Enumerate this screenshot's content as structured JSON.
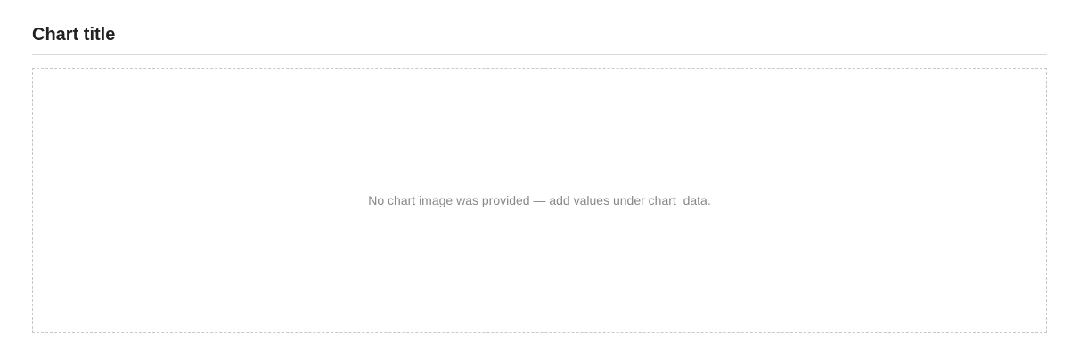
{
  "title": "Chart title",
  "subtitle": "",
  "placeholder": "No chart image was provided — add values under chart_data.",
  "chart_data": {
    "type": "line",
    "title": "",
    "xlabel": "",
    "ylabel": "",
    "x": [],
    "series": []
  }
}
